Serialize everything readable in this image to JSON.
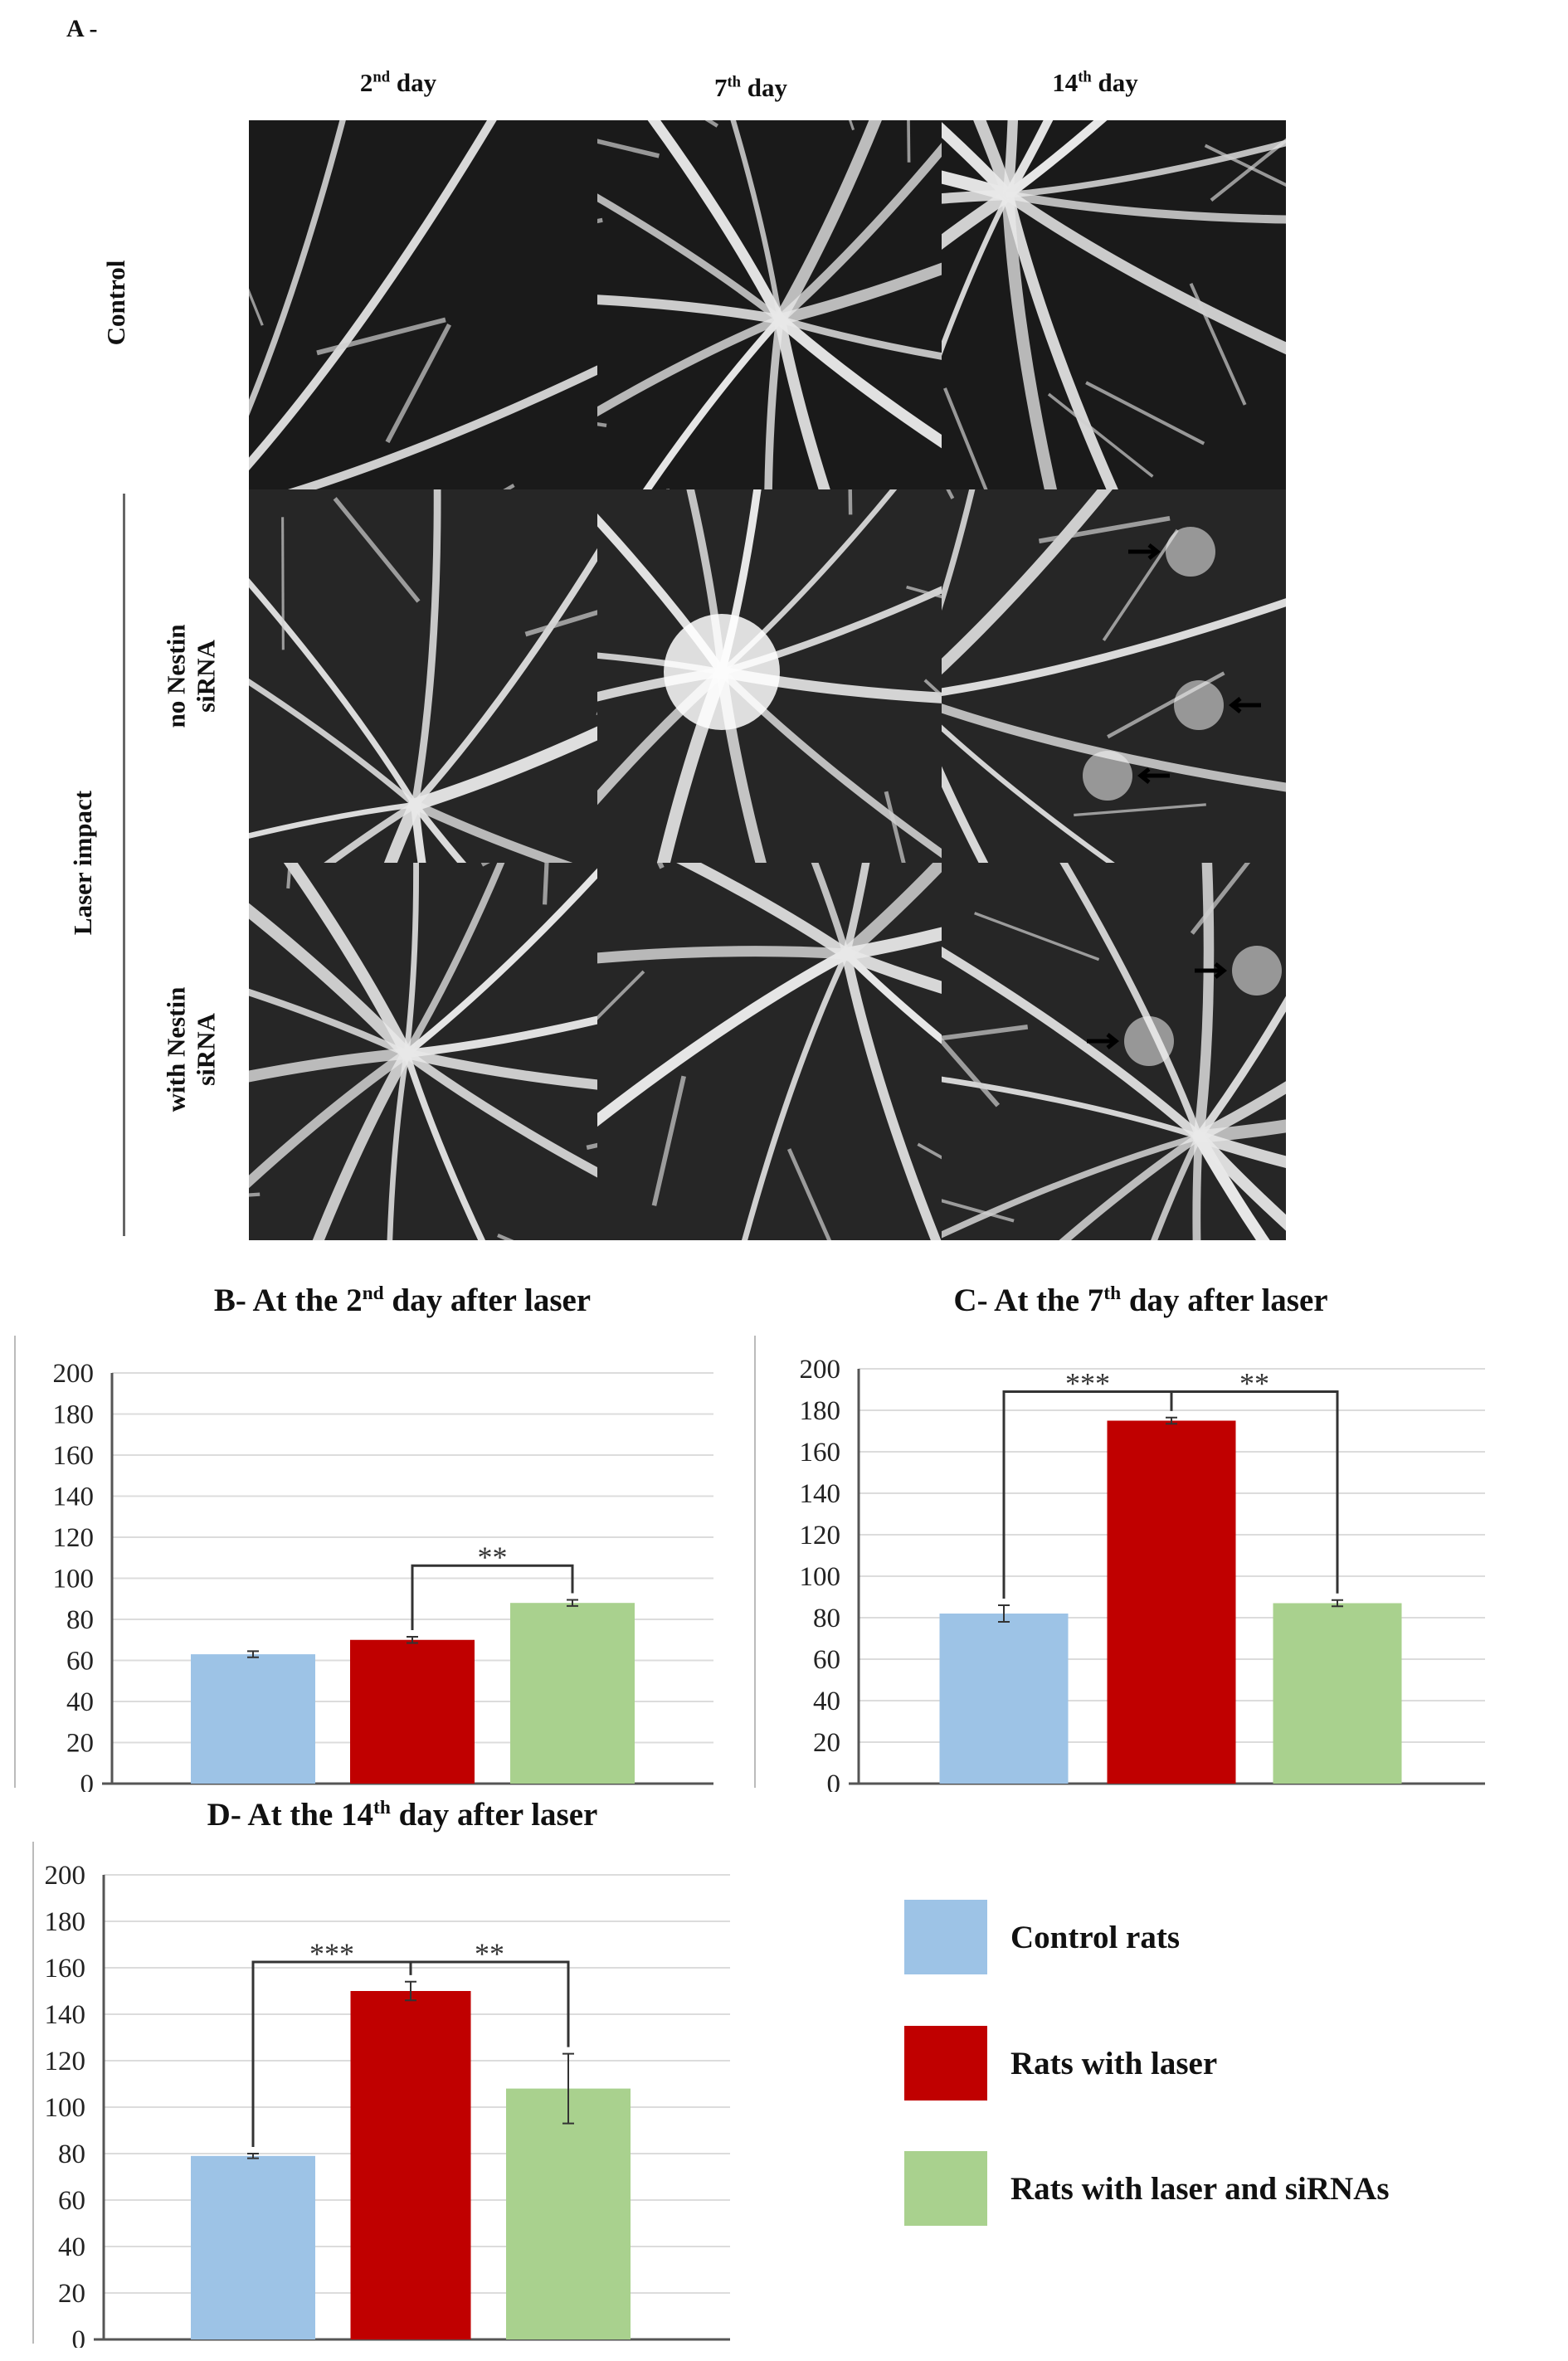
{
  "figure": {
    "panel_a_label": "A -",
    "columns": [
      {
        "label": "2",
        "sup": "nd",
        "rest": " day"
      },
      {
        "label": "7",
        "sup": "th",
        "rest": " day"
      },
      {
        "label": "14",
        "sup": "th",
        "rest": " day"
      }
    ],
    "rows": {
      "control": "Control",
      "laser_impact": "Laser impact",
      "no_nestin_line1": "no Nestin",
      "no_nestin_line2": "siRNA",
      "with_nestin_line1": "with Nestin",
      "with_nestin_line2": "siRNA"
    },
    "images": [
      {
        "name": "control-day2-angiogram"
      },
      {
        "name": "control-day7-angiogram"
      },
      {
        "name": "control-day14-angiogram"
      },
      {
        "name": "no-nestin-day2-angiogram"
      },
      {
        "name": "no-nestin-day7-angiogram"
      },
      {
        "name": "no-nestin-day14-angiogram"
      },
      {
        "name": "with-nestin-day2-angiogram"
      },
      {
        "name": "with-nestin-day7-angiogram"
      },
      {
        "name": "with-nestin-day14-angiogram"
      }
    ]
  },
  "legend": [
    {
      "label": "Control rats",
      "color": "#9dc3e6"
    },
    {
      "label": "Rats with laser",
      "color": "#c00000"
    },
    {
      "label": "Rats with laser and siRNAs",
      "color": "#a9d18e"
    }
  ],
  "chart_data": [
    {
      "type": "bar",
      "title_prefix": "B- At the 2",
      "title_sup": "nd",
      "title_suffix": " day after laser",
      "categories": [
        "Control rats",
        "Rats with laser",
        "Rats with laser and siRNAs"
      ],
      "values": [
        63,
        70,
        88
      ],
      "errors": [
        1.5,
        1.5,
        1.5
      ],
      "colors": [
        "#9dc3e6",
        "#c00000",
        "#a9d18e"
      ],
      "ylim": [
        0,
        200
      ],
      "yticks": [
        0,
        20,
        40,
        60,
        80,
        100,
        120,
        140,
        160,
        180,
        200
      ],
      "grid": true,
      "significance": [
        {
          "from": 1,
          "to": 2,
          "label": "**"
        }
      ]
    },
    {
      "type": "bar",
      "title_prefix": "C- At the 7",
      "title_sup": "th",
      "title_suffix": " day after laser",
      "categories": [
        "Control rats",
        "Rats with laser",
        "Rats with laser and siRNAs"
      ],
      "values": [
        82,
        175,
        87
      ],
      "errors": [
        4,
        1.5,
        1.5
      ],
      "colors": [
        "#9dc3e6",
        "#c00000",
        "#a9d18e"
      ],
      "ylim": [
        0,
        200
      ],
      "yticks": [
        0,
        20,
        40,
        60,
        80,
        100,
        120,
        140,
        160,
        180,
        200
      ],
      "grid": true,
      "significance": [
        {
          "from": 0,
          "to": 1,
          "label": "***"
        },
        {
          "from": 1,
          "to": 2,
          "label": "**"
        }
      ]
    },
    {
      "type": "bar",
      "title_prefix": "D- At the 14",
      "title_sup": "th",
      "title_suffix": " day after laser",
      "categories": [
        "Control rats",
        "Rats with laser",
        "Rats with laser and siRNAs"
      ],
      "values": [
        79,
        150,
        108
      ],
      "errors": [
        1,
        4,
        15
      ],
      "colors": [
        "#9dc3e6",
        "#c00000",
        "#a9d18e"
      ],
      "ylim": [
        0,
        200
      ],
      "yticks": [
        0,
        20,
        40,
        60,
        80,
        100,
        120,
        140,
        160,
        180,
        200
      ],
      "grid": true,
      "significance": [
        {
          "from": 0,
          "to": 1,
          "label": "***"
        },
        {
          "from": 1,
          "to": 2,
          "label": "**"
        }
      ]
    }
  ]
}
